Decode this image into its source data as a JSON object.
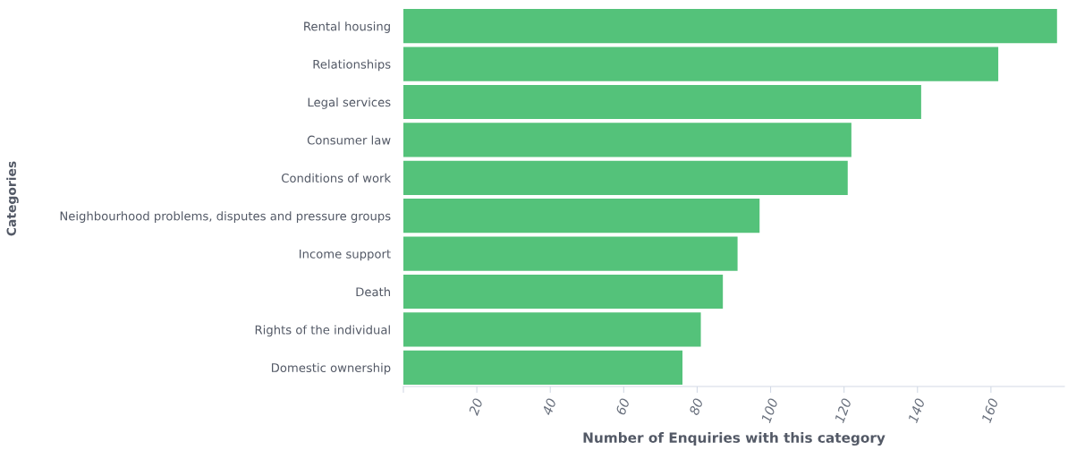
{
  "chart_data": {
    "type": "bar",
    "orientation": "horizontal",
    "xlabel": "Number of Enquiries with this category",
    "ylabel": "Categories",
    "categories": [
      "Rental housing",
      "Relationships",
      "Legal services",
      "Consumer law",
      "Conditions of work",
      "Neighbourhood problems, disputes and pressure groups",
      "Income support",
      "Death",
      "Rights of the individual",
      "Domestic ownership"
    ],
    "values": [
      178,
      162,
      141,
      122,
      121,
      97,
      91,
      87,
      81,
      76
    ],
    "color": "#54c27a",
    "xlim": [
      0,
      180
    ],
    "xticks": [
      {
        "value": 0,
        "label": null
      },
      20,
      40,
      60,
      80,
      100,
      120,
      140,
      160
    ],
    "grid": false,
    "legend": false
  }
}
